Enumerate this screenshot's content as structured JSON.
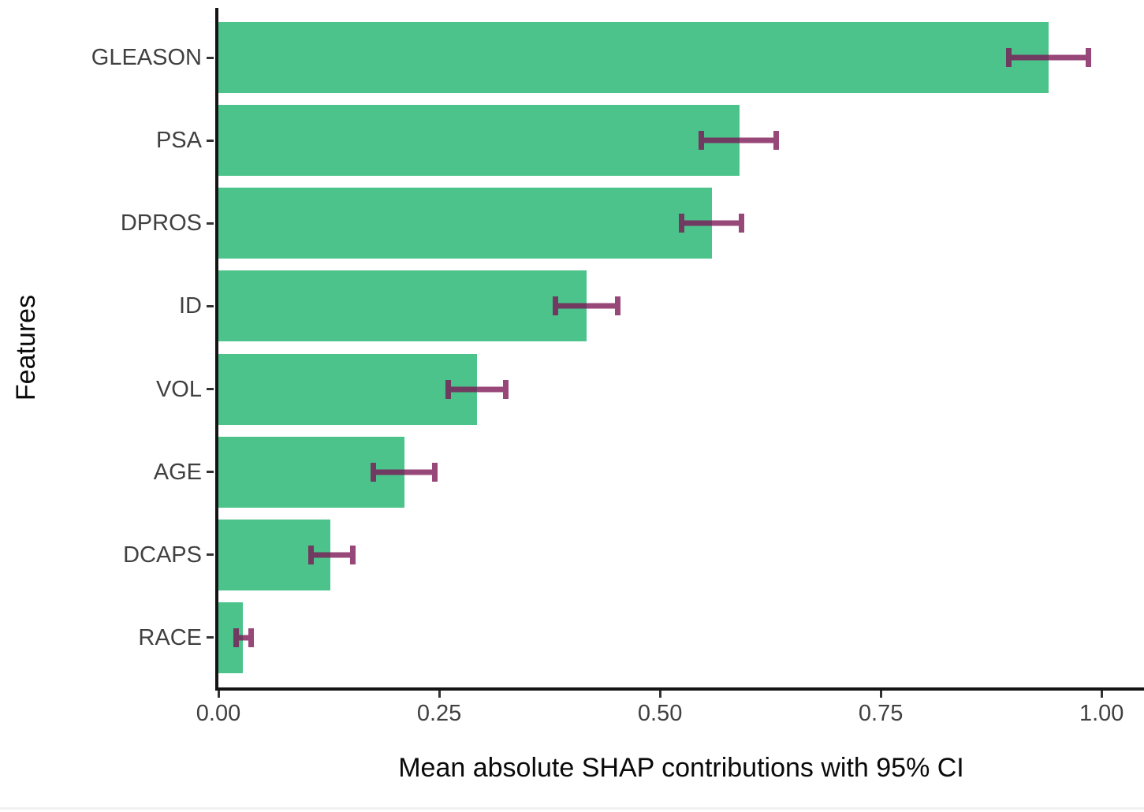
{
  "chart_data": {
    "type": "bar",
    "orientation": "horizontal",
    "title": "",
    "xlabel": "Mean absolute SHAP contributions with 95% CI",
    "ylabel": "Features",
    "categories": [
      "GLEASON",
      "PSA",
      "DPROS",
      "ID",
      "VOL",
      "AGE",
      "DCAPS",
      "RACE"
    ],
    "series": [
      {
        "name": "mean_absolute_shap",
        "values": [
          0.94,
          0.59,
          0.559,
          0.417,
          0.293,
          0.211,
          0.127,
          0.028
        ]
      },
      {
        "name": "ci_low",
        "values": [
          0.895,
          0.547,
          0.524,
          0.382,
          0.26,
          0.175,
          0.105,
          0.02
        ]
      },
      {
        "name": "ci_high",
        "values": [
          0.985,
          0.632,
          0.592,
          0.452,
          0.325,
          0.245,
          0.152,
          0.037
        ]
      }
    ],
    "xlim": [
      0,
      1.048
    ],
    "x_tick_values": [
      0,
      0.25,
      0.5,
      0.75,
      1.0
    ],
    "x_tick_labels": [
      "0.00",
      "0.25",
      "0.50",
      "0.75",
      "1.00"
    ],
    "grid": false,
    "legend": "none",
    "colors": {
      "bar": "#4DC38C",
      "error_bar": "#7C1454",
      "error_bar_opacity": 0.78,
      "axis_line": "#141414",
      "tick_text": "#404040",
      "title_text": "#0A0A0A"
    }
  }
}
